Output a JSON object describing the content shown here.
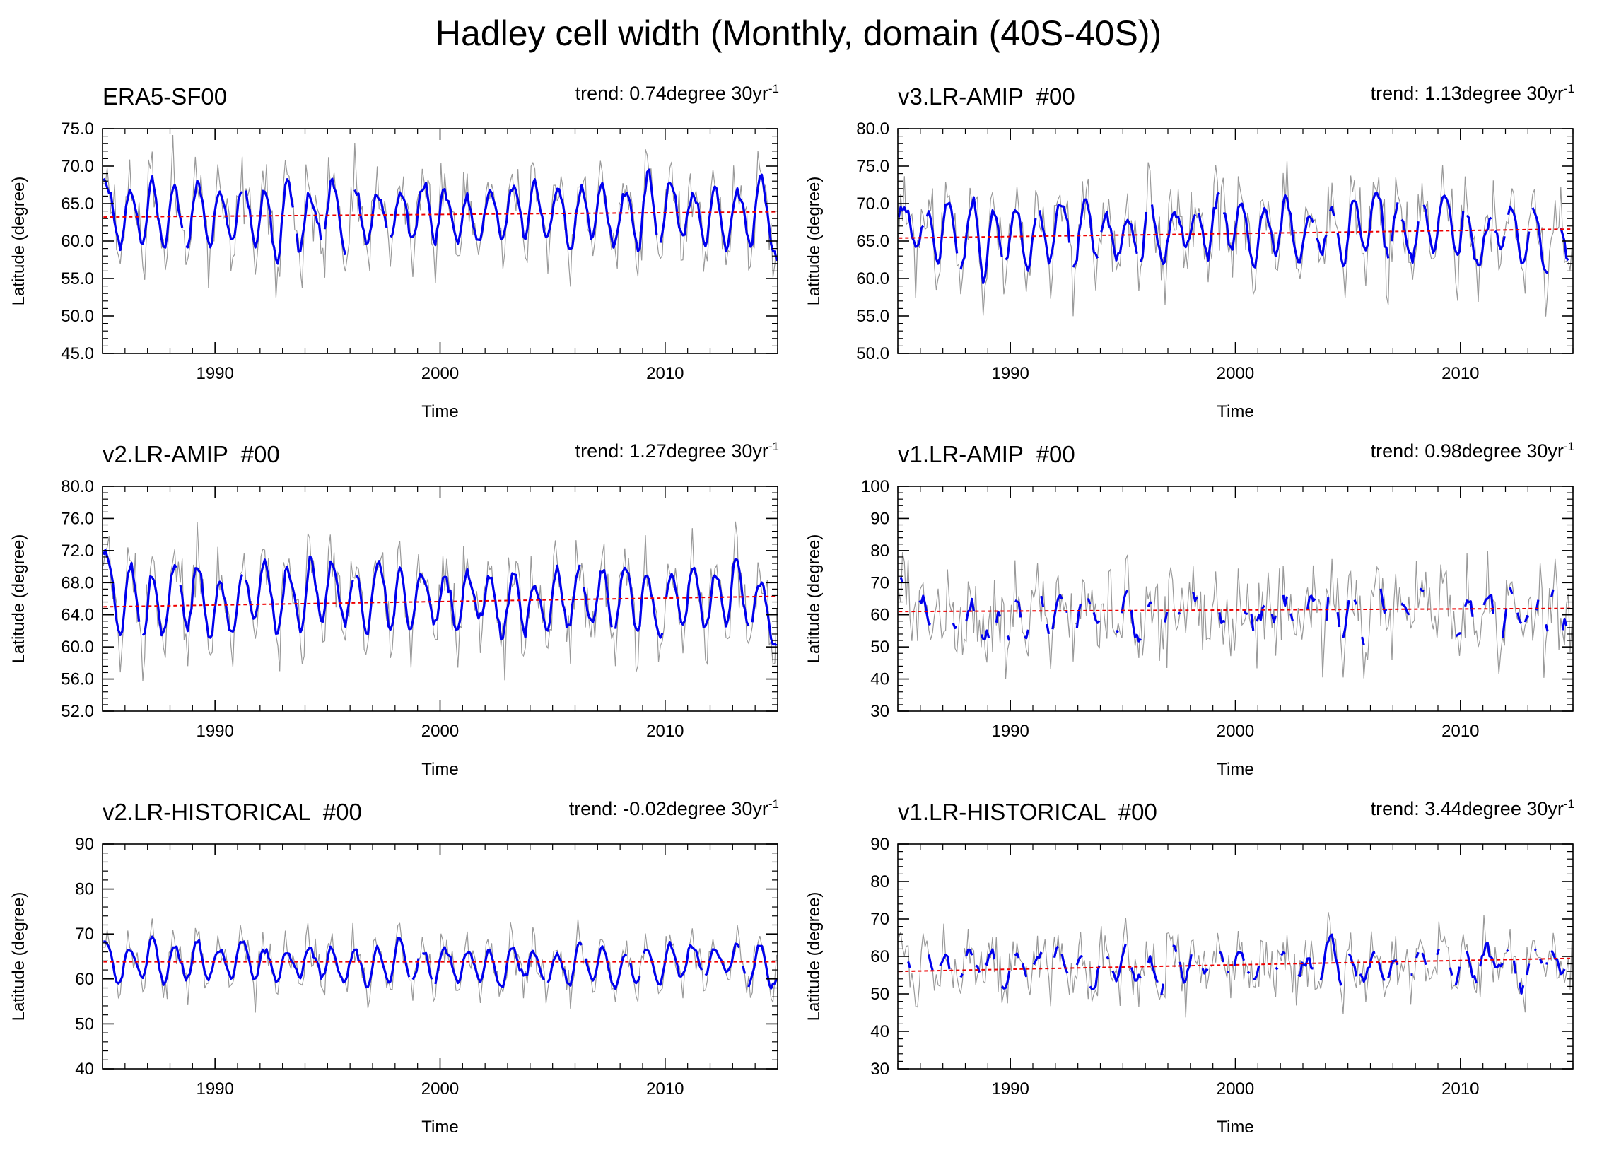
{
  "title": "Hadley cell width (Monthly, domain (40S-40S))",
  "colors": {
    "smooth": "#0000ee",
    "raw": "#999999",
    "trend": "#ee0000",
    "frame": "#000000"
  },
  "chart_data": [
    {
      "type": "line",
      "label": "ERA5-SF00",
      "trend_text": "trend: 0.74degree 30yr",
      "trend_exp": "-1",
      "xlabel": "Time",
      "ylabel": "Latitude (degree)",
      "xlim": [
        1985,
        2015
      ],
      "xticks": [
        "1990",
        "2000",
        "2010"
      ],
      "xtick_values": [
        1990,
        2000,
        2010
      ],
      "ylim": [
        45,
        75
      ],
      "yticks": [
        "45.0",
        "50.0",
        "55.0",
        "60.0",
        "65.0",
        "70.0",
        "75.0"
      ],
      "ytick_values": [
        45,
        50,
        55,
        60,
        65,
        70,
        75
      ],
      "mean": 63.6,
      "amp": 5.2,
      "noise": 3.5,
      "smooth_amp": 0.55,
      "gap_prob": 0.02,
      "trend_line": [
        63.2,
        63.9
      ],
      "seed": 11
    },
    {
      "type": "line",
      "label": "v3.LR-AMIP  #00",
      "trend_text": "trend: 1.13degree 30yr",
      "trend_exp": "-1",
      "xlabel": "Time",
      "ylabel": "Latitude (degree)",
      "xlim": [
        1985,
        2015
      ],
      "xticks": [
        "1990",
        "2000",
        "2010"
      ],
      "xtick_values": [
        1990,
        2000,
        2010
      ],
      "ylim": [
        50,
        80
      ],
      "yticks": [
        "50.0",
        "55.0",
        "60.0",
        "65.0",
        "70.0",
        "75.0",
        "80.0"
      ],
      "ytick_values": [
        50,
        55,
        60,
        65,
        70,
        75,
        80
      ],
      "mean": 66.2,
      "amp": 5.0,
      "noise": 4.2,
      "smooth_amp": 0.55,
      "gap_prob": 0.05,
      "trend_line": [
        65.4,
        66.6
      ],
      "seed": 23
    },
    {
      "type": "line",
      "label": "v2.LR-AMIP  #00",
      "trend_text": "trend: 1.27degree 30yr",
      "trend_exp": "-1",
      "xlabel": "Time",
      "ylabel": "Latitude (degree)",
      "xlim": [
        1985,
        2015
      ],
      "xticks": [
        "1990",
        "2000",
        "2010"
      ],
      "xtick_values": [
        1990,
        2000,
        2010
      ],
      "ylim": [
        52,
        80
      ],
      "yticks": [
        "52.0",
        "56.0",
        "60.0",
        "64.0",
        "68.0",
        "72.0",
        "76.0",
        "80.0"
      ],
      "ytick_values": [
        52,
        56,
        60,
        64,
        68,
        72,
        76,
        80
      ],
      "mean": 65.8,
      "amp": 5.0,
      "noise": 3.8,
      "smooth_amp": 0.55,
      "gap_prob": 0.02,
      "trend_line": [
        65.0,
        66.3
      ],
      "seed": 37
    },
    {
      "type": "line",
      "label": "v1.LR-AMIP  #00",
      "trend_text": "trend: 0.98degree 30yr",
      "trend_exp": "-1",
      "xlabel": "Time",
      "ylabel": "Latitude (degree)",
      "xlim": [
        1985,
        2015
      ],
      "xticks": [
        "1990",
        "2000",
        "2010"
      ],
      "xtick_values": [
        1990,
        2000,
        2010
      ],
      "ylim": [
        30,
        100
      ],
      "yticks": [
        "30",
        "40",
        "50",
        "60",
        "70",
        "80",
        "90",
        "100"
      ],
      "ytick_values": [
        30,
        40,
        50,
        60,
        70,
        80,
        90,
        100
      ],
      "mean": 60.5,
      "amp": 6.0,
      "noise": 11.0,
      "smooth_amp": 0.55,
      "gap_prob": 0.42,
      "trend_line": [
        61.0,
        62.0
      ],
      "seed": 53
    },
    {
      "type": "line",
      "label": "v2.LR-HISTORICAL  #00",
      "trend_text": "trend: -0.02degree 30yr",
      "trend_exp": "-1",
      "xlabel": "Time",
      "ylabel": "Latitude (degree)",
      "xlim": [
        1985,
        2015
      ],
      "xticks": [
        "1990",
        "2000",
        "2010"
      ],
      "xtick_values": [
        1990,
        2000,
        2010
      ],
      "ylim": [
        40,
        90
      ],
      "yticks": [
        "40",
        "50",
        "60",
        "70",
        "80",
        "90"
      ],
      "ytick_values": [
        40,
        50,
        60,
        70,
        80,
        90
      ],
      "mean": 63.5,
      "amp": 5.0,
      "noise": 3.6,
      "smooth_amp": 0.55,
      "gap_prob": 0.01,
      "trend_line": [
        63.8,
        63.8
      ],
      "seed": 71
    },
    {
      "type": "line",
      "label": "v1.LR-HISTORICAL  #00",
      "trend_text": "trend: 3.44degree 30yr",
      "trend_exp": "-1",
      "xlabel": "Time",
      "ylabel": "Latitude (degree)",
      "xlim": [
        1985,
        2015
      ],
      "xticks": [
        "1990",
        "2000",
        "2010"
      ],
      "xtick_values": [
        1990,
        2000,
        2010
      ],
      "ylim": [
        30,
        90
      ],
      "yticks": [
        "30",
        "40",
        "50",
        "60",
        "70",
        "80",
        "90"
      ],
      "ytick_values": [
        30,
        40,
        50,
        60,
        70,
        80,
        90
      ],
      "mean": 58.0,
      "amp": 5.0,
      "noise": 7.5,
      "smooth_amp": 0.55,
      "gap_prob": 0.28,
      "trend_line": [
        56.0,
        59.5
      ],
      "seed": 89
    }
  ]
}
